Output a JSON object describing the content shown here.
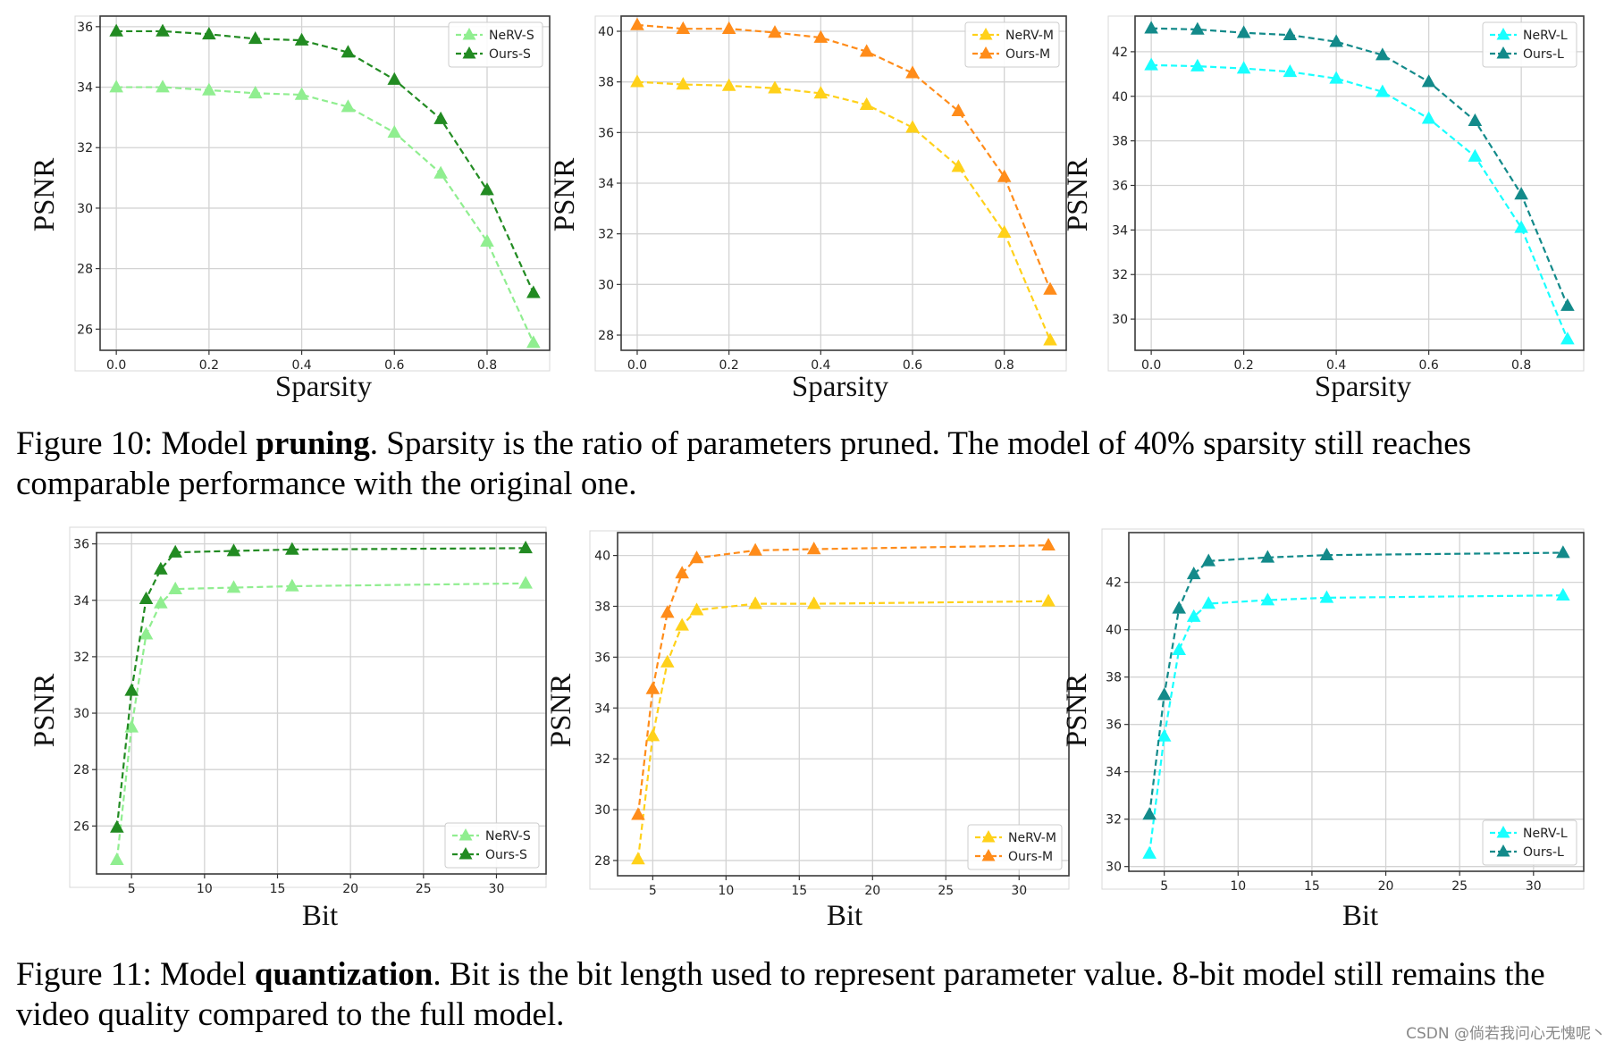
{
  "figures": [
    {
      "label": "Figure 10:",
      "text_before": " Model ",
      "bold": "pruning",
      "text_after": ". Sparsity is the ratio of parameters pruned. The model of 40% sparsity still reaches comparable performance with the original one."
    },
    {
      "label": "Figure 11:",
      "text_before": " Model ",
      "bold": "quantization",
      "text_after": ". Bit is the bit length used to represent parameter value. 8-bit model still remains the video quality compared to the full model."
    }
  ],
  "watermark": "CSDN @倘若我问心无愧呢丶",
  "colors": {
    "nerv_s": "#90ee90",
    "ours_s": "#228b22",
    "nerv_m": "#ffd11a",
    "ours_m": "#ff8c1a",
    "nerv_l": "#19ffff",
    "ours_l": "#138a8a"
  },
  "chart_data": [
    {
      "type": "line",
      "marker": "triangle",
      "linestyle": "dashed",
      "xlabel": "Sparsity",
      "ylabel": "PSNR",
      "xlim": [
        -0.035,
        0.935
      ],
      "ylim": [
        25.3,
        36.35
      ],
      "xticks": [
        "0.0",
        "0.2",
        "0.4",
        "0.6",
        "0.8"
      ],
      "xtick_values": [
        0,
        0.2,
        0.4,
        0.6,
        0.8
      ],
      "yticks": [
        "26",
        "28",
        "30",
        "32",
        "34",
        "36"
      ],
      "ytick_values": [
        26,
        28,
        30,
        32,
        34,
        36
      ],
      "grid": true,
      "legend_position": "top-right",
      "x": [
        0,
        0.1,
        0.2,
        0.3,
        0.4,
        0.5,
        0.6,
        0.7,
        0.8,
        0.9
      ],
      "series": [
        {
          "name": "NeRV-S",
          "color_key": "nerv_s",
          "values": [
            34.0,
            34.0,
            33.9,
            33.8,
            33.75,
            33.35,
            32.5,
            31.15,
            28.9,
            25.55
          ]
        },
        {
          "name": "Ours-S",
          "color_key": "ours_s",
          "values": [
            35.85,
            35.85,
            35.75,
            35.6,
            35.55,
            35.15,
            34.25,
            32.95,
            30.6,
            27.2
          ]
        }
      ]
    },
    {
      "type": "line",
      "marker": "triangle",
      "linestyle": "dashed",
      "xlabel": "Sparsity",
      "ylabel": "PSNR",
      "xlim": [
        -0.035,
        0.935
      ],
      "ylim": [
        27.4,
        40.6
      ],
      "xticks": [
        "0.0",
        "0.2",
        "0.4",
        "0.6",
        "0.8"
      ],
      "xtick_values": [
        0,
        0.2,
        0.4,
        0.6,
        0.8
      ],
      "yticks": [
        "28",
        "30",
        "32",
        "34",
        "36",
        "38",
        "40"
      ],
      "ytick_values": [
        28,
        30,
        32,
        34,
        36,
        38,
        40
      ],
      "grid": true,
      "legend_position": "top-right",
      "x": [
        0,
        0.1,
        0.2,
        0.3,
        0.4,
        0.5,
        0.6,
        0.7,
        0.8,
        0.9
      ],
      "series": [
        {
          "name": "NeRV-M",
          "color_key": "nerv_m",
          "values": [
            38.0,
            37.9,
            37.85,
            37.75,
            37.55,
            37.1,
            36.2,
            34.65,
            32.05,
            27.8
          ]
        },
        {
          "name": "Ours-M",
          "color_key": "ours_m",
          "values": [
            40.25,
            40.1,
            40.1,
            39.95,
            39.75,
            39.2,
            38.35,
            36.85,
            34.25,
            29.8
          ]
        }
      ]
    },
    {
      "type": "line",
      "marker": "triangle",
      "linestyle": "dashed",
      "xlabel": "Sparsity",
      "ylabel": "PSNR",
      "xlim": [
        -0.035,
        0.935
      ],
      "ylim": [
        28.6,
        43.6
      ],
      "xticks": [
        "0.0",
        "0.2",
        "0.4",
        "0.6",
        "0.8"
      ],
      "xtick_values": [
        0,
        0.2,
        0.4,
        0.6,
        0.8
      ],
      "yticks": [
        "30",
        "32",
        "34",
        "36",
        "38",
        "40",
        "42"
      ],
      "ytick_values": [
        30,
        32,
        34,
        36,
        38,
        40,
        42
      ],
      "grid": true,
      "legend_position": "top-right",
      "x": [
        0,
        0.1,
        0.2,
        0.3,
        0.4,
        0.5,
        0.6,
        0.7,
        0.8,
        0.9
      ],
      "series": [
        {
          "name": "NeRV-L",
          "color_key": "nerv_l",
          "values": [
            41.4,
            41.35,
            41.25,
            41.1,
            40.8,
            40.2,
            39.0,
            37.3,
            34.1,
            29.1
          ]
        },
        {
          "name": "Ours-L",
          "color_key": "ours_l",
          "values": [
            43.05,
            43.0,
            42.85,
            42.75,
            42.45,
            41.85,
            40.65,
            38.9,
            35.6,
            30.6
          ]
        }
      ]
    },
    {
      "type": "line",
      "marker": "triangle",
      "linestyle": "dashed",
      "xlabel": "Bit",
      "ylabel": "PSNR",
      "xlim": [
        2.6,
        33.4
      ],
      "ylim": [
        24.3,
        36.4
      ],
      "xticks": [
        "5",
        "10",
        "15",
        "20",
        "25",
        "30"
      ],
      "xtick_values": [
        5,
        10,
        15,
        20,
        25,
        30
      ],
      "yticks": [
        "26",
        "28",
        "30",
        "32",
        "34",
        "36"
      ],
      "ytick_values": [
        26,
        28,
        30,
        32,
        34,
        36
      ],
      "grid": true,
      "legend_position": "bottom-right",
      "x": [
        4,
        5,
        6,
        7,
        8,
        12,
        16,
        32
      ],
      "series": [
        {
          "name": "NeRV-S",
          "color_key": "nerv_s",
          "values": [
            24.8,
            29.5,
            32.8,
            33.9,
            34.4,
            34.45,
            34.5,
            34.6
          ]
        },
        {
          "name": "Ours-S",
          "color_key": "ours_s",
          "values": [
            25.95,
            30.8,
            34.05,
            35.1,
            35.7,
            35.75,
            35.8,
            35.85
          ]
        }
      ]
    },
    {
      "type": "line",
      "marker": "triangle",
      "linestyle": "dashed",
      "xlabel": "Bit",
      "ylabel": "PSNR",
      "xlim": [
        2.6,
        33.4
      ],
      "ylim": [
        27.4,
        40.9
      ],
      "xticks": [
        "5",
        "10",
        "15",
        "20",
        "25",
        "30"
      ],
      "xtick_values": [
        5,
        10,
        15,
        20,
        25,
        30
      ],
      "yticks": [
        "28",
        "30",
        "32",
        "34",
        "36",
        "38",
        "40"
      ],
      "ytick_values": [
        28,
        30,
        32,
        34,
        36,
        38,
        40
      ],
      "grid": true,
      "legend_position": "bottom-right",
      "x": [
        4,
        5,
        6,
        7,
        8,
        12,
        16,
        32
      ],
      "series": [
        {
          "name": "NeRV-M",
          "color_key": "nerv_m",
          "values": [
            28.05,
            32.9,
            35.8,
            37.25,
            37.85,
            38.1,
            38.1,
            38.2
          ]
        },
        {
          "name": "Ours-M",
          "color_key": "ours_m",
          "values": [
            29.8,
            34.75,
            37.75,
            39.3,
            39.9,
            40.2,
            40.25,
            40.4
          ]
        }
      ]
    },
    {
      "type": "line",
      "marker": "triangle",
      "linestyle": "dashed",
      "xlabel": "Bit",
      "ylabel": "PSNR",
      "xlim": [
        2.6,
        33.4
      ],
      "ylim": [
        29.8,
        44.1
      ],
      "xticks": [
        "5",
        "10",
        "15",
        "20",
        "25",
        "30"
      ],
      "xtick_values": [
        5,
        10,
        15,
        20,
        25,
        30
      ],
      "yticks": [
        "30",
        "32",
        "34",
        "36",
        "38",
        "40",
        "42"
      ],
      "ytick_values": [
        30,
        32,
        34,
        36,
        38,
        40,
        42
      ],
      "grid": true,
      "legend_position": "bottom-right",
      "x": [
        4,
        5,
        6,
        7,
        8,
        12,
        16,
        32
      ],
      "series": [
        {
          "name": "NeRV-L",
          "color_key": "nerv_l",
          "values": [
            30.55,
            35.5,
            39.15,
            40.55,
            41.1,
            41.25,
            41.35,
            41.45
          ]
        },
        {
          "name": "Ours-L",
          "color_key": "ours_l",
          "values": [
            32.2,
            37.25,
            40.9,
            42.35,
            42.9,
            43.05,
            43.15,
            43.25
          ]
        }
      ]
    }
  ]
}
